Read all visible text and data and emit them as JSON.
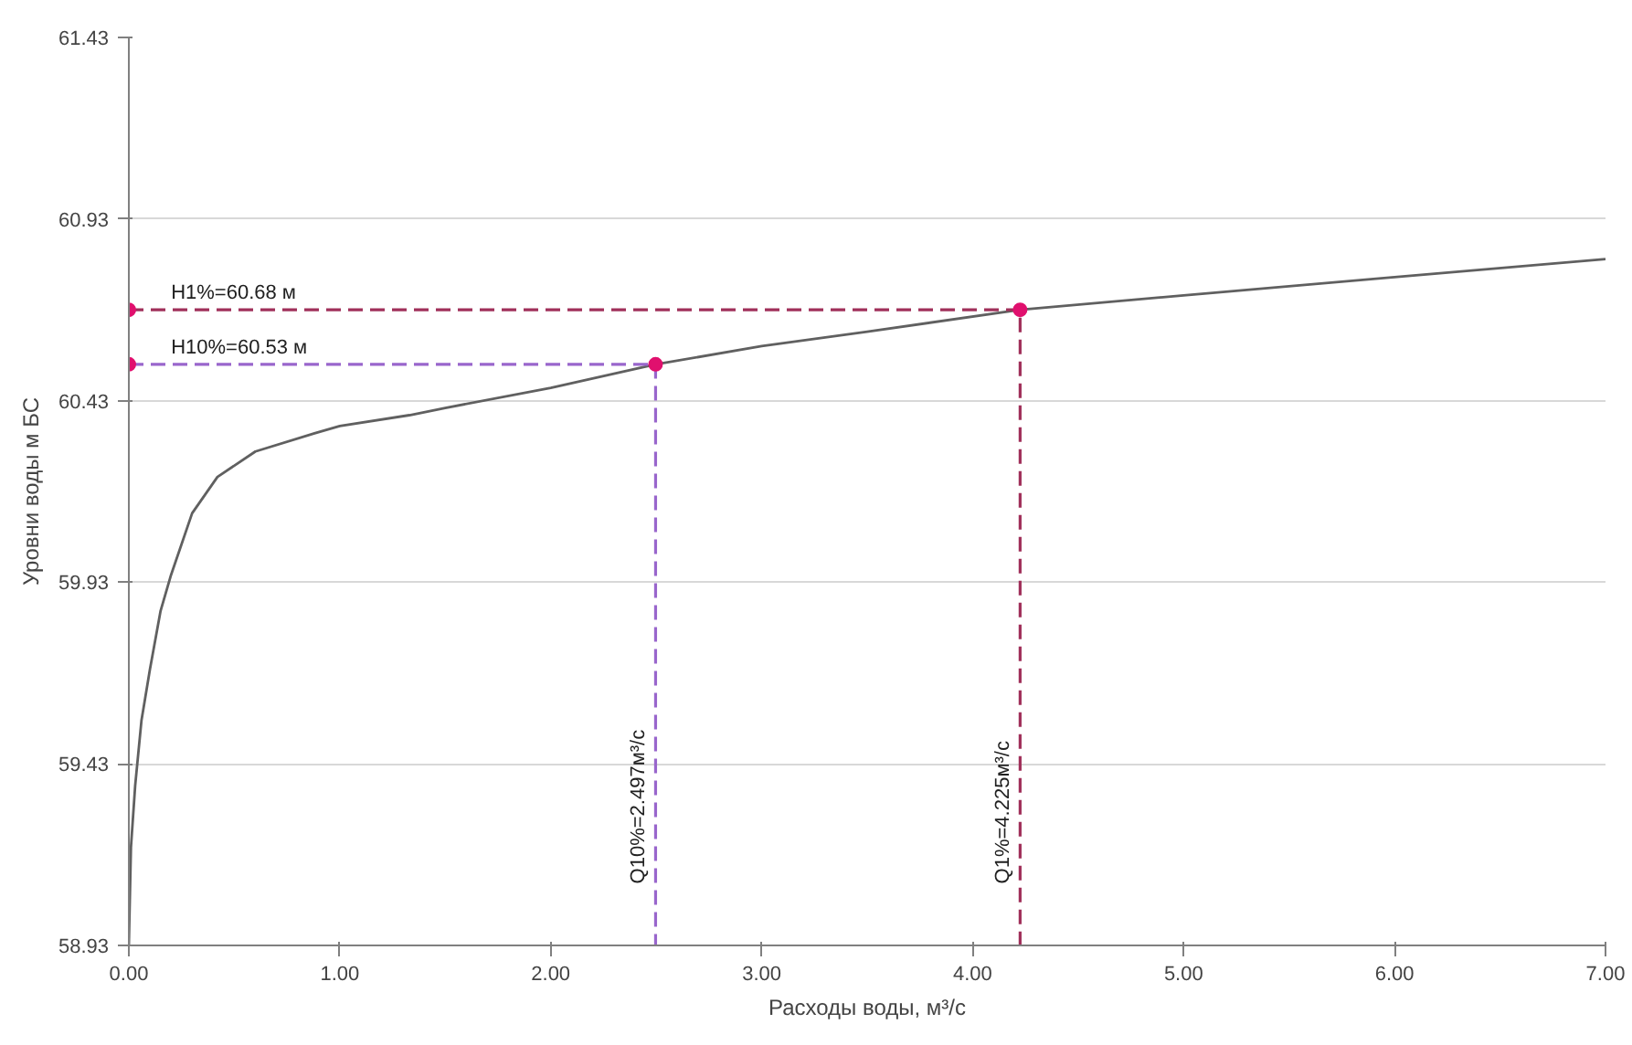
{
  "chart_data": {
    "type": "line",
    "xlabel": "Расходы воды, м³/с",
    "ylabel": "Уровни воды м БС",
    "xlim": [
      0,
      7
    ],
    "ylim": [
      58.93,
      61.43
    ],
    "xticks": [
      {
        "value": 0,
        "label": "0.00"
      },
      {
        "value": 1,
        "label": "1.00"
      },
      {
        "value": 2,
        "label": "2.00"
      },
      {
        "value": 3,
        "label": "3.00"
      },
      {
        "value": 4,
        "label": "4.00"
      },
      {
        "value": 5,
        "label": "5.00"
      },
      {
        "value": 6,
        "label": "6.00"
      },
      {
        "value": 7,
        "label": "7.00"
      }
    ],
    "yticks": [
      58.93,
      59.43,
      59.93,
      60.43,
      60.93,
      61.43
    ],
    "grid": "y",
    "series": [
      {
        "color": "#606060",
        "line_style": "solid",
        "marker": "none",
        "x": [
          0,
          0.01,
          0.03,
          0.06,
          0.1,
          0.15,
          0.2,
          0.3,
          0.42,
          0.6,
          0.88,
          1.0,
          1.33,
          1.5,
          2.0,
          2.497,
          3.0,
          3.5,
          4.225,
          5.0,
          6.0,
          7.0
        ],
        "values": [
          58.93,
          59.2,
          59.37,
          59.55,
          59.69,
          59.85,
          59.95,
          60.12,
          60.22,
          60.29,
          60.34,
          60.36,
          60.39,
          60.41,
          60.465,
          60.53,
          60.58,
          60.62,
          60.68,
          60.72,
          60.77,
          60.82
        ]
      },
      {
        "color": "#a0305a",
        "line_style": "dashed",
        "marker": "none",
        "x": [
          0,
          4.225,
          4.225
        ],
        "values": [
          60.68,
          60.68,
          58.93
        ]
      },
      {
        "color": "#9966cc",
        "line_style": "dashed",
        "marker": "none",
        "x": [
          0,
          2.497,
          2.497
        ],
        "values": [
          60.53,
          60.53,
          58.93
        ]
      },
      {
        "type": "scatter",
        "color": "#e0106e",
        "marker": "circle",
        "x": [
          0,
          4.225,
          0,
          2.497
        ],
        "values": [
          60.68,
          60.68,
          60.53,
          60.53
        ]
      }
    ],
    "annotations": [
      {
        "text": "H1%=60.68 м",
        "x": 0.2,
        "y": 60.68
      },
      {
        "text": "H10%=60.53 м",
        "x": 0.2,
        "y": 60.53
      },
      {
        "text": "Q10%=2.497м³/с",
        "x": 2.497,
        "y": 59.1
      },
      {
        "text": "Q1%=4.225м³/с",
        "x": 4.225,
        "y": 59.1
      }
    ]
  }
}
